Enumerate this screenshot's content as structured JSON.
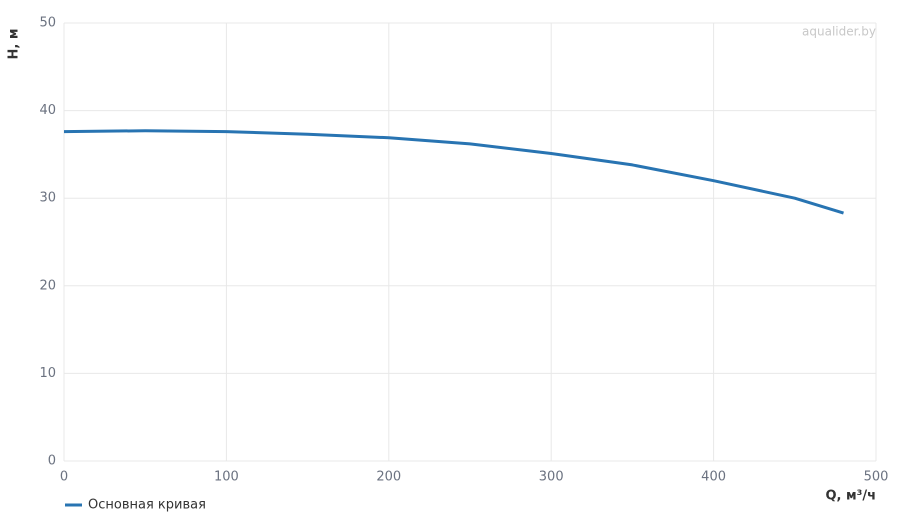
{
  "chart_data": {
    "type": "line",
    "watermark": "aqualider.by",
    "x_label": "Q, м³/ч",
    "y_label": "H, м",
    "x": [
      0,
      50,
      100,
      150,
      200,
      250,
      300,
      350,
      400,
      450,
      480
    ],
    "series": [
      {
        "name": "Основная кривая",
        "color": "#2874b2",
        "values": [
          37.6,
          37.7,
          37.6,
          37.3,
          36.9,
          36.2,
          35.1,
          33.8,
          32.0,
          30.0,
          28.3
        ]
      }
    ],
    "xlim": [
      0,
      500
    ],
    "xticks": [
      0,
      100,
      200,
      300,
      400,
      500
    ],
    "ylim": [
      0,
      50
    ],
    "yticks": [
      0,
      10,
      20,
      30,
      40,
      50
    ],
    "grid": true,
    "legend": "bottom-left"
  }
}
